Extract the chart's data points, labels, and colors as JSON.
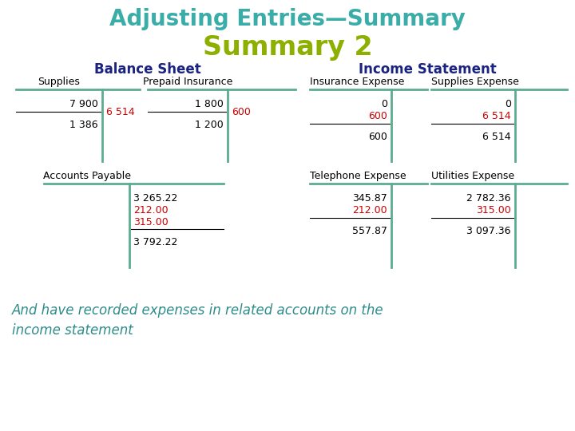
{
  "title1": "Adjusting Entries—Summary",
  "title2": "Summary 2",
  "title1_color": "#3AADA8",
  "title2_color": "#8DB000",
  "section_bs": "Balance Sheet",
  "section_is": "Income Statement",
  "section_color": "#1a237e",
  "tline_color": "#5BAD8F",
  "black": "#000000",
  "red": "#CC0000",
  "bg": "#ffffff",
  "footer_color": "#2E8B8B",
  "footer_text": "And have recorded expenses in related accounts on the\nincome statement"
}
